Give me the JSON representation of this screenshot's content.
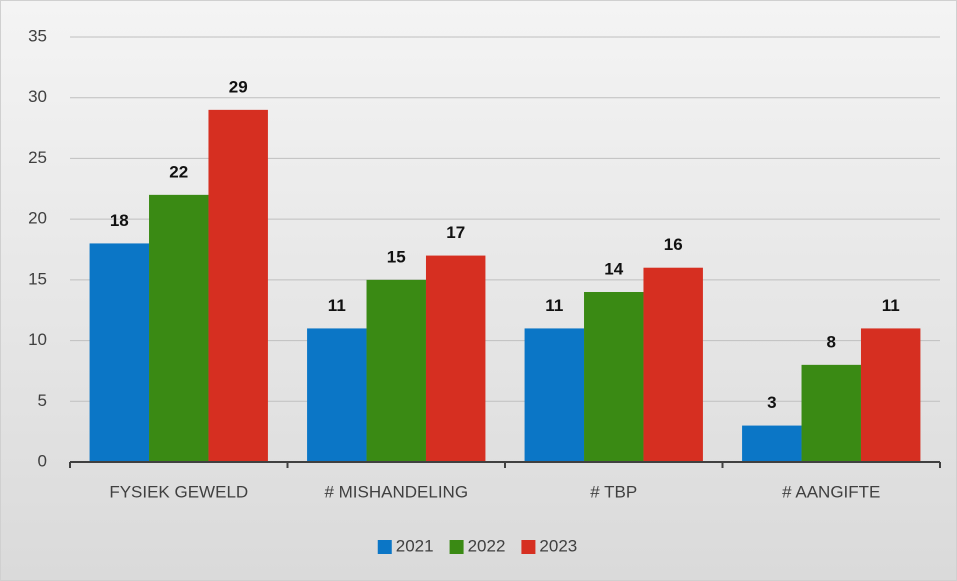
{
  "chart_data": {
    "type": "bar",
    "categories": [
      "FYSIEK GEWELD",
      "# MISHANDELING",
      "# TBP",
      "# AANGIFTE"
    ],
    "series": [
      {
        "name": "2021",
        "color": "#0b76c6",
        "values": [
          18,
          11,
          11,
          3
        ]
      },
      {
        "name": "2022",
        "color": "#3a8a14",
        "values": [
          22,
          15,
          14,
          8
        ]
      },
      {
        "name": "2023",
        "color": "#d62f21",
        "values": [
          29,
          17,
          16,
          11
        ]
      }
    ],
    "ylim": [
      0,
      35
    ],
    "yticks": [
      0,
      5,
      10,
      15,
      20,
      25,
      30,
      35
    ],
    "grid": true,
    "legend": "bottom"
  }
}
